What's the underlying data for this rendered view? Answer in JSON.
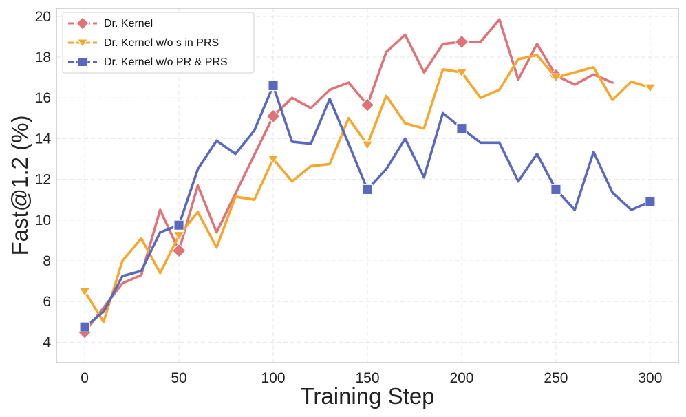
{
  "chart_data": {
    "type": "line",
    "title": "",
    "xlabel": "Training Step",
    "ylabel": "Fast@1.2 (%)",
    "xlim": [
      -15,
      315
    ],
    "ylim": [
      3,
      20.4
    ],
    "xticks": [
      0,
      50,
      100,
      150,
      200,
      250,
      300
    ],
    "yticks": [
      4,
      6,
      8,
      10,
      12,
      14,
      16,
      18,
      20
    ],
    "grid": true,
    "legend_position": "top-left",
    "series": [
      {
        "name": "Dr. Kernel",
        "color": "#E07377",
        "marker": "diamond",
        "marker_every": 5,
        "x": [
          0,
          10,
          20,
          30,
          40,
          50,
          60,
          70,
          80,
          90,
          100,
          110,
          120,
          130,
          140,
          150,
          160,
          170,
          180,
          190,
          200,
          210,
          220,
          230,
          240,
          250,
          260,
          270,
          280
        ],
        "y": [
          4.5,
          5.7,
          6.9,
          7.3,
          10.5,
          8.5,
          11.7,
          9.4,
          11.3,
          13.2,
          15.1,
          16.0,
          15.5,
          16.4,
          16.75,
          15.65,
          18.25,
          19.1,
          17.25,
          18.65,
          18.75,
          18.75,
          19.85,
          16.9,
          18.65,
          17.1,
          16.65,
          17.15,
          16.75
        ]
      },
      {
        "name": "Dr. Kernel w/o s in PRS",
        "color": "#F8A72E",
        "marker": "triangle-down",
        "marker_every": 5,
        "x": [
          0,
          10,
          20,
          30,
          40,
          50,
          60,
          70,
          80,
          90,
          100,
          110,
          120,
          130,
          140,
          150,
          160,
          170,
          180,
          190,
          200,
          210,
          220,
          230,
          240,
          250,
          260,
          270,
          280,
          290,
          300
        ],
        "y": [
          6.5,
          5.0,
          8.0,
          9.1,
          7.4,
          9.25,
          10.4,
          8.65,
          11.15,
          11.0,
          13.0,
          11.9,
          12.65,
          12.75,
          15.0,
          13.7,
          16.1,
          14.75,
          14.5,
          17.4,
          17.25,
          16.0,
          16.4,
          17.9,
          18.1,
          17.0,
          17.25,
          17.5,
          15.9,
          16.8,
          16.5
        ]
      },
      {
        "name": "Dr. Kernel w/o PR & PRS",
        "color": "#5A69C0",
        "marker": "square",
        "marker_every": 5,
        "x": [
          0,
          10,
          20,
          30,
          40,
          50,
          60,
          70,
          80,
          90,
          100,
          110,
          120,
          130,
          140,
          150,
          160,
          170,
          180,
          190,
          200,
          210,
          220,
          230,
          240,
          250,
          260,
          270,
          280,
          290,
          300
        ],
        "y": [
          4.75,
          5.5,
          7.25,
          7.5,
          9.4,
          9.75,
          12.5,
          13.9,
          13.25,
          14.4,
          16.6,
          13.85,
          13.75,
          15.95,
          13.75,
          11.5,
          12.5,
          14.0,
          12.1,
          15.25,
          14.5,
          13.8,
          13.8,
          11.9,
          13.25,
          11.5,
          10.5,
          13.35,
          11.35,
          10.5,
          10.9
        ]
      }
    ]
  }
}
